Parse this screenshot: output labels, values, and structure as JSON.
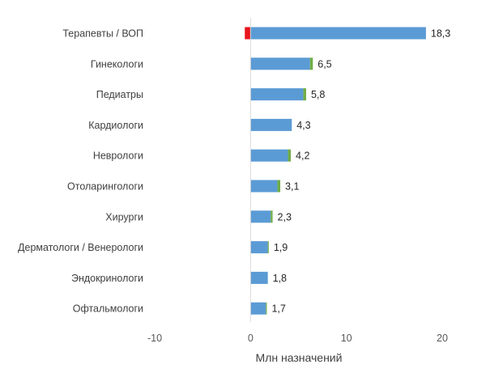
{
  "chart_data": {
    "type": "bar",
    "orientation": "horizontal",
    "stacked": true,
    "categories": [
      "Терапевты / ВОП",
      "Гинекологи",
      "Педиатры",
      "Кардиологи",
      "Неврологи",
      "Отоларингологи",
      "Хирурги",
      "Дерматологи / Венерологи",
      "Эндокринологи",
      "Офтальмологи"
    ],
    "series": [
      {
        "color": "#e8141c",
        "values": [
          -0.6,
          0,
          0,
          0,
          0,
          0,
          0,
          0,
          0,
          0
        ]
      },
      {
        "color": "#5b9bd5",
        "values": [
          18.3,
          6.2,
          5.5,
          4.3,
          3.9,
          2.8,
          2.1,
          1.8,
          1.8,
          1.6
        ]
      },
      {
        "color": "#70ad47",
        "values": [
          0,
          0.3,
          0.3,
          0,
          0.3,
          0.3,
          0.2,
          0.1,
          0,
          0.1
        ]
      }
    ],
    "totals": [
      "18,3",
      "6,5",
      "5,8",
      "4,3",
      "4,2",
      "3,1",
      "2,3",
      "1,9",
      "1,8",
      "1,7"
    ],
    "xlabel": "Млн назначений",
    "xlim": [
      -10,
      20
    ],
    "xticks": [
      "-10",
      "0",
      "10",
      "20"
    ],
    "grid": false,
    "legend": "none"
  }
}
